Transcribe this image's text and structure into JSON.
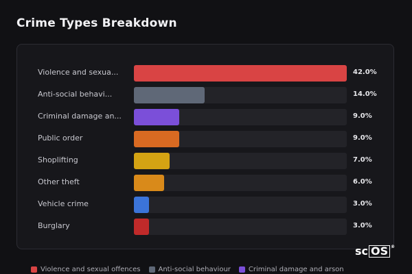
{
  "title": "Crime Types Breakdown",
  "chart_data": {
    "type": "bar",
    "orientation": "horizontal",
    "categories": [
      "Violence and sexual offences",
      "Anti-social behaviour",
      "Criminal damage and arson",
      "Public order",
      "Shoplifting",
      "Other theft",
      "Vehicle crime",
      "Burglary"
    ],
    "category_labels": [
      "Violence and sexua...",
      "Anti-social behavi...",
      "Criminal damage an...",
      "Public order",
      "Shoplifting",
      "Other theft",
      "Vehicle crime",
      "Burglary"
    ],
    "values": [
      42.0,
      14.0,
      9.0,
      9.0,
      7.0,
      6.0,
      3.0,
      3.0
    ],
    "value_labels": [
      "42.0%",
      "14.0%",
      "9.0%",
      "9.0%",
      "7.0%",
      "6.0%",
      "3.0%",
      "3.0%"
    ],
    "colors": [
      "#d94444",
      "#5f6877",
      "#7b4fd9",
      "#d96a22",
      "#d4a313",
      "#d98a1a",
      "#3b74d9",
      "#c02a2a"
    ],
    "xlim": [
      0,
      42
    ],
    "legend": {
      "placement": "bottom",
      "entries": [
        {
          "label": "Violence and sexual offences",
          "color": "#d94444"
        },
        {
          "label": "Anti-social behaviour",
          "color": "#5f6877"
        },
        {
          "label": "Criminal damage and arson",
          "color": "#7b4fd9"
        }
      ]
    },
    "grid": false
  },
  "logo": {
    "text_a": "sc",
    "text_b": "OS",
    "mark": "®"
  }
}
